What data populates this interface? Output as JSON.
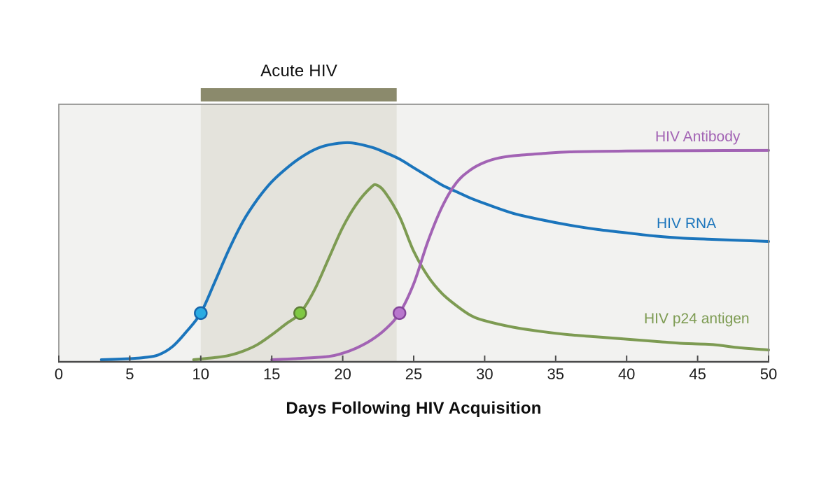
{
  "figure": {
    "kind": "medical line chart",
    "background": "#ffffff"
  },
  "chart_data": {
    "type": "line",
    "title": "",
    "xlabel": "Days Following HIV Acquisition",
    "ylabel": "",
    "x_range": [
      0,
      50
    ],
    "x_ticks": [
      0,
      5,
      10,
      15,
      20,
      25,
      30,
      35,
      40,
      45,
      50
    ],
    "y_axis_note": "relative marker level, unlabeled axis (0-100 normalized)",
    "grid": false,
    "legend_position": "labels placed at right end of each curve",
    "plot_bg": "#f2f2f0",
    "acute_window_days": [
      10,
      23.8
    ],
    "acute_region_color": "#e4e3dc",
    "acute_bar_color": "#8b8a6c",
    "border_color": "#8a8a88",
    "axis_color": "#4b4b4b",
    "annotations": [
      {
        "text": "Acute HIV",
        "position": "above shaded window days 10-24"
      }
    ],
    "series": [
      {
        "name": "HIV RNA",
        "color": "#1b75bc",
        "marker": {
          "day": 10,
          "level": 21.5,
          "fill": "#29abe2",
          "stroke": "#1565ab"
        },
        "points": [
          [
            3,
            0
          ],
          [
            5,
            0.5
          ],
          [
            6,
            1
          ],
          [
            7,
            2.2
          ],
          [
            8,
            6
          ],
          [
            9,
            13
          ],
          [
            10,
            21.5
          ],
          [
            11,
            36
          ],
          [
            12,
            51
          ],
          [
            13,
            64
          ],
          [
            14,
            74
          ],
          [
            15,
            82
          ],
          [
            16,
            88
          ],
          [
            17,
            93
          ],
          [
            18,
            96.8
          ],
          [
            19,
            99
          ],
          [
            20.5,
            100
          ],
          [
            22,
            98
          ],
          [
            23,
            95.5
          ],
          [
            24,
            92.5
          ],
          [
            25,
            88.5
          ],
          [
            26,
            84.5
          ],
          [
            27,
            80.5
          ],
          [
            28,
            77.5
          ],
          [
            29,
            74.5
          ],
          [
            30,
            72
          ],
          [
            32,
            67.5
          ],
          [
            34,
            64.5
          ],
          [
            36,
            62
          ],
          [
            38,
            60
          ],
          [
            40,
            58.5
          ],
          [
            42,
            57
          ],
          [
            44,
            56
          ],
          [
            46,
            55.5
          ],
          [
            48,
            55
          ],
          [
            50,
            54.5
          ]
        ]
      },
      {
        "name": "HIV p24 antigen",
        "color": "#7d9b52",
        "marker": {
          "day": 17,
          "level": 21.5,
          "fill": "#7fc843",
          "stroke": "#5d7d36"
        },
        "points": [
          [
            9.5,
            0
          ],
          [
            11,
            1
          ],
          [
            12,
            2
          ],
          [
            13,
            4
          ],
          [
            14,
            7
          ],
          [
            15,
            11.5
          ],
          [
            16,
            16.5
          ],
          [
            17,
            21.5
          ],
          [
            18,
            32
          ],
          [
            19,
            46.5
          ],
          [
            20,
            61
          ],
          [
            21,
            72
          ],
          [
            22,
            79.5
          ],
          [
            22.4,
            80.5
          ],
          [
            23,
            77
          ],
          [
            24,
            66
          ],
          [
            25,
            50
          ],
          [
            26,
            38.5
          ],
          [
            27,
            30.5
          ],
          [
            28,
            25
          ],
          [
            29,
            20.5
          ],
          [
            30,
            18
          ],
          [
            32,
            15
          ],
          [
            34,
            13
          ],
          [
            36,
            11.5
          ],
          [
            38,
            10.5
          ],
          [
            40,
            9.5
          ],
          [
            42,
            8.5
          ],
          [
            44,
            7.5
          ],
          [
            46,
            7
          ],
          [
            48,
            5.5
          ],
          [
            50,
            4.5
          ]
        ]
      },
      {
        "name": "HIV Antibody",
        "color": "#a263b4",
        "marker": {
          "day": 24,
          "level": 21.5,
          "fill": "#b877cd",
          "stroke": "#84459a"
        },
        "points": [
          [
            15,
            0
          ],
          [
            17,
            0.6
          ],
          [
            19,
            1.5
          ],
          [
            20,
            3
          ],
          [
            21,
            5.5
          ],
          [
            22,
            9
          ],
          [
            23,
            14
          ],
          [
            24,
            21.5
          ],
          [
            25,
            35
          ],
          [
            26,
            54.5
          ],
          [
            27,
            70.5
          ],
          [
            28,
            81.5
          ],
          [
            29,
            87.5
          ],
          [
            30,
            91
          ],
          [
            31,
            93
          ],
          [
            32,
            94
          ],
          [
            34,
            95
          ],
          [
            36,
            95.8
          ],
          [
            40,
            96.2
          ],
          [
            45,
            96.4
          ],
          [
            50,
            96.5
          ]
        ]
      }
    ]
  }
}
